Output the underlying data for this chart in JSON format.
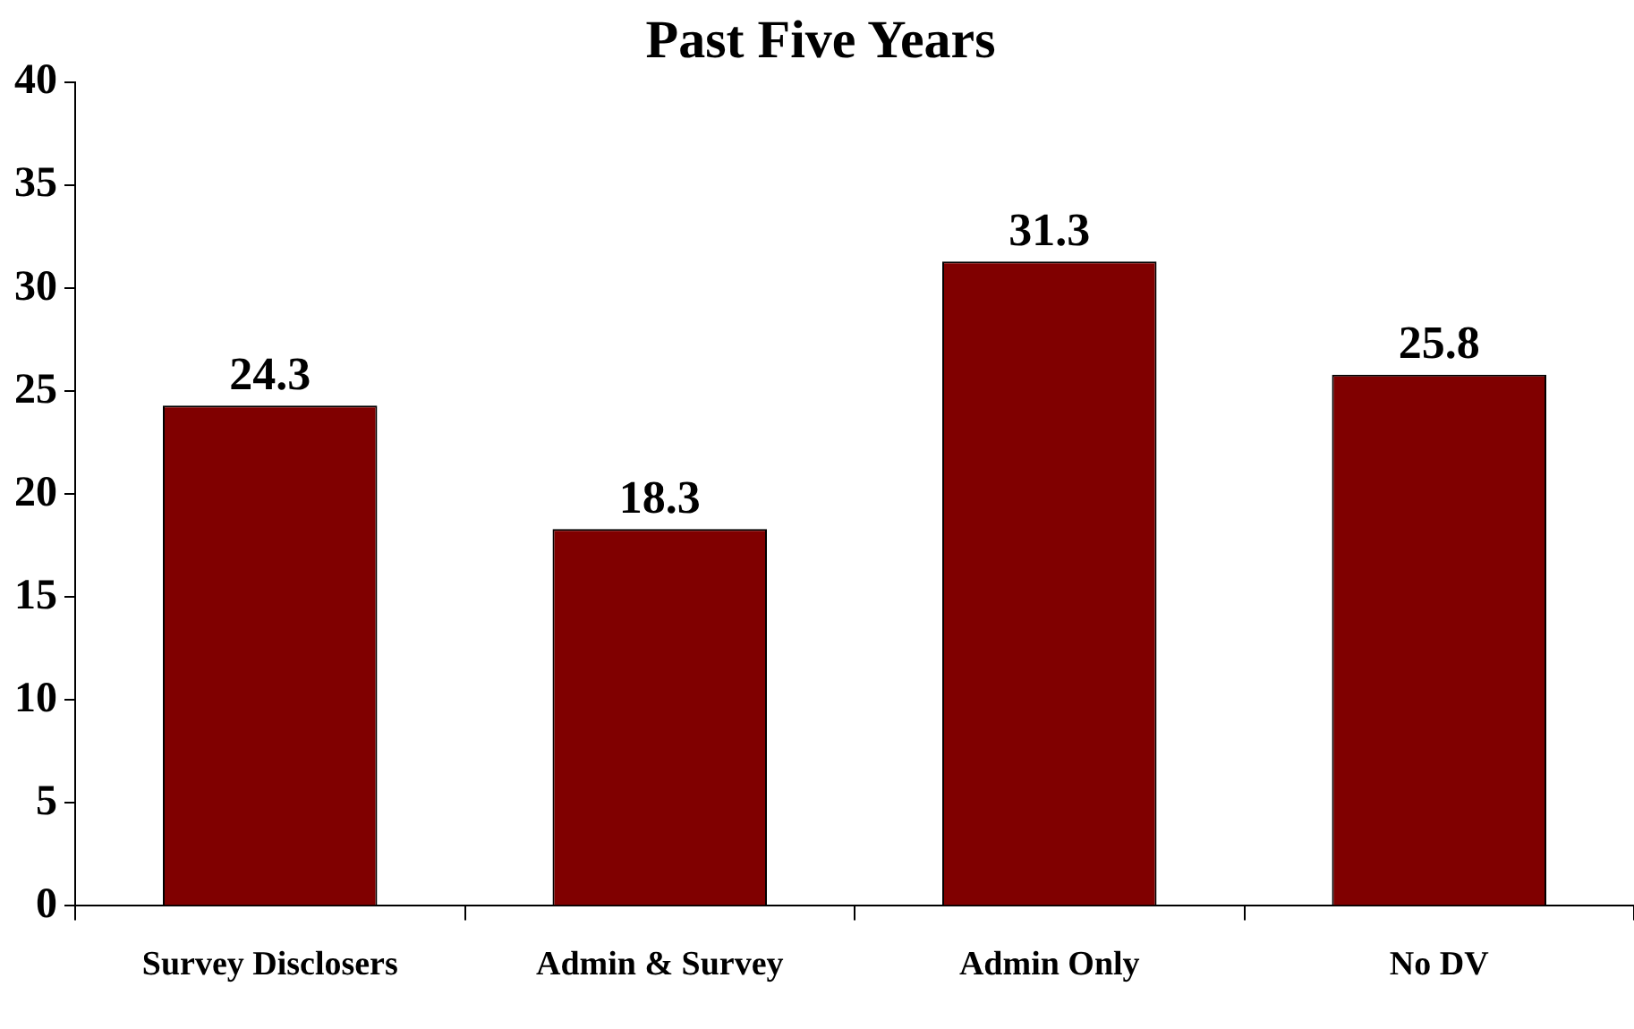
{
  "chart_data": {
    "type": "bar",
    "title": "Past Five Years",
    "categories": [
      "Survey Disclosers",
      "Admin & Survey",
      "Admin Only",
      "No DV"
    ],
    "values": [
      24.3,
      18.3,
      31.3,
      25.8
    ],
    "color": "#800000",
    "ylim": [
      0,
      40
    ],
    "yticks": [
      0,
      5,
      10,
      15,
      20,
      25,
      30,
      35,
      40
    ],
    "grid": false,
    "data_labels": true
  }
}
